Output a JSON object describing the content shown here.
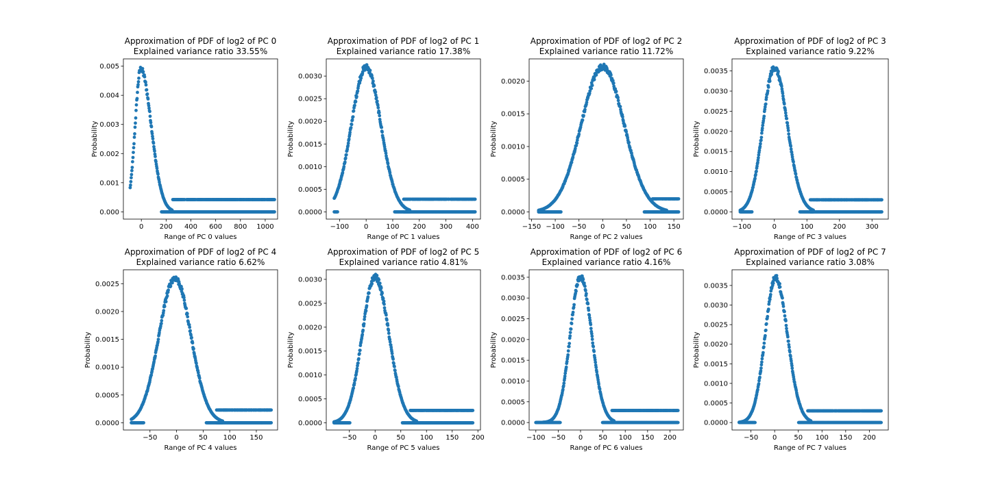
{
  "figure": {
    "marker_color": "#1f77b4"
  },
  "chart_data": [
    {
      "type": "scatter",
      "title": "Approximation of PDF of log2 of PC 0",
      "subtitle": "Explained variance ratio 33.55%",
      "xlabel": "Range of PC 0 values",
      "ylabel": "Probability",
      "xlim": [
        -145,
        1100
      ],
      "ylim": [
        -0.00025,
        0.00525
      ],
      "xticks": [
        0,
        200,
        400,
        600,
        800,
        1000
      ],
      "yticks": [
        0.0,
        0.001,
        0.002,
        0.003,
        0.004,
        0.005
      ],
      "xtick_labels": [
        "0",
        "200",
        "400",
        "600",
        "800",
        "1000"
      ],
      "ytick_labels": [
        "0.000",
        "0.001",
        "0.002",
        "0.003",
        "0.004",
        "0.005"
      ],
      "grid": false,
      "peak": {
        "x": -5,
        "y": 0.0049
      },
      "left_std": 45,
      "right_std": 85,
      "x_range": [
        -90,
        1075
      ],
      "tail_levels": [
        0.00042,
        0.0
      ],
      "tail_start": 250
    },
    {
      "type": "scatter",
      "title": "Approximation of PDF of log2 of PC 1",
      "subtitle": "Explained variance ratio 17.38%",
      "xlabel": "Range of PC 1 values",
      "ylabel": "Probability",
      "xlim": [
        -150,
        430
      ],
      "ylim": [
        -0.00016,
        0.00338
      ],
      "xticks": [
        -100,
        0,
        100,
        200,
        300,
        400
      ],
      "yticks": [
        0.0,
        0.0005,
        0.001,
        0.0015,
        0.002,
        0.0025,
        0.003
      ],
      "xtick_labels": [
        "−100",
        "0",
        "100",
        "200",
        "300",
        "400"
      ],
      "ytick_labels": [
        "0.0000",
        "0.0005",
        "0.0010",
        "0.0015",
        "0.0020",
        "0.0025",
        "0.0030"
      ],
      "grid": false,
      "peak": {
        "x": 0,
        "y": 0.0032
      },
      "left_std": 55,
      "right_std": 55,
      "x_range": [
        -120,
        410
      ],
      "tail_levels": [
        0.00028,
        0.0
      ],
      "tail_start": 140
    },
    {
      "type": "scatter",
      "title": "Approximation of PDF of log2 of PC 2",
      "subtitle": "Explained variance ratio 11.72%",
      "xlabel": "Range of PC 2 values",
      "ylabel": "Probability",
      "xlim": [
        -155,
        170
      ],
      "ylim": [
        -0.00011,
        0.00234
      ],
      "xticks": [
        -150,
        -100,
        -50,
        0,
        50,
        100,
        150
      ],
      "yticks": [
        0.0,
        0.0005,
        0.001,
        0.0015,
        0.002
      ],
      "xtick_labels": [
        "−150",
        "−100",
        "−50",
        "0",
        "50",
        "100",
        "150"
      ],
      "ytick_labels": [
        "0.0000",
        "0.0005",
        "0.0010",
        "0.0015",
        "0.0020"
      ],
      "grid": false,
      "peak": {
        "x": 0,
        "y": 0.00222
      },
      "left_std": 45,
      "right_std": 45,
      "x_range": [
        -135,
        160
      ],
      "tail_levels": [
        0.0002,
        0.0
      ],
      "tail_start": 105
    },
    {
      "type": "scatter",
      "title": "Approximation of PDF of log2 of PC 3",
      "subtitle": "Explained variance ratio 9.22%",
      "xlabel": "Range of PC 3 values",
      "ylabel": "Probability",
      "xlim": [
        -130,
        350
      ],
      "ylim": [
        -0.00018,
        0.0038
      ],
      "xticks": [
        -100,
        0,
        100,
        200,
        300
      ],
      "yticks": [
        0.0,
        0.0005,
        0.001,
        0.0015,
        0.002,
        0.0025,
        0.003,
        0.0035
      ],
      "xtick_labels": [
        "−100",
        "0",
        "100",
        "200",
        "300"
      ],
      "ytick_labels": [
        "0.0000",
        "0.0005",
        "0.0010",
        "0.0015",
        "0.0020",
        "0.0025",
        "0.0030",
        "0.0035"
      ],
      "grid": false,
      "peak": {
        "x": 0,
        "y": 0.00358
      },
      "left_std": 35,
      "right_std": 40,
      "x_range": [
        -105,
        330
      ],
      "tail_levels": [
        0.0003,
        0.0
      ],
      "tail_start": 110
    },
    {
      "type": "scatter",
      "title": "Approximation of PDF of log2 of PC 4",
      "subtitle": "Explained variance ratio 6.62%",
      "xlabel": "Range of PC 4 values",
      "ylabel": "Probability",
      "xlim": [
        -100,
        190
      ],
      "ylim": [
        -0.00013,
        0.00275
      ],
      "xticks": [
        -50,
        0,
        50,
        100,
        150
      ],
      "yticks": [
        0.0,
        0.0005,
        0.001,
        0.0015,
        0.002,
        0.0025
      ],
      "xtick_labels": [
        "−50",
        "0",
        "50",
        "100",
        "150"
      ],
      "ytick_labels": [
        "0.0000",
        "0.0005",
        "0.0010",
        "0.0015",
        "0.0020",
        "0.0025"
      ],
      "grid": false,
      "peak": {
        "x": -3,
        "y": 0.0026
      },
      "left_std": 30,
      "right_std": 30,
      "x_range": [
        -85,
        178
      ],
      "tail_levels": [
        0.00023,
        0.0
      ],
      "tail_start": 75
    },
    {
      "type": "scatter",
      "title": "Approximation of PDF of log2 of PC 5",
      "subtitle": "Explained variance ratio 4.81%",
      "xlabel": "Range of PC 5 values",
      "ylabel": "Probability",
      "xlim": [
        -95,
        205
      ],
      "ylim": [
        -0.00015,
        0.0032
      ],
      "xticks": [
        -50,
        0,
        50,
        100,
        150,
        200
      ],
      "yticks": [
        0.0,
        0.0005,
        0.001,
        0.0015,
        0.002,
        0.0025,
        0.003
      ],
      "xtick_labels": [
        "−50",
        "0",
        "50",
        "100",
        "150",
        "200"
      ],
      "ytick_labels": [
        "0.0000",
        "0.0005",
        "0.0010",
        "0.0015",
        "0.0020",
        "0.0025",
        "0.0030"
      ],
      "grid": false,
      "peak": {
        "x": 0,
        "y": 0.00305
      },
      "left_std": 25,
      "right_std": 27,
      "x_range": [
        -80,
        190
      ],
      "tail_levels": [
        0.00026,
        0.0
      ],
      "tail_start": 68
    },
    {
      "type": "scatter",
      "title": "Approximation of PDF of log2 of PC 6",
      "subtitle": "Explained variance ratio 4.16%",
      "xlabel": "Range of PC 6 values",
      "ylabel": "Probability",
      "xlim": [
        -115,
        230
      ],
      "ylim": [
        -0.00018,
        0.00368
      ],
      "xticks": [
        -100,
        -50,
        0,
        50,
        100,
        150,
        200
      ],
      "yticks": [
        0.0,
        0.0005,
        0.001,
        0.0015,
        0.002,
        0.0025,
        0.003,
        0.0035
      ],
      "xtick_labels": [
        "−100",
        "−50",
        "0",
        "50",
        "100",
        "150",
        "200"
      ],
      "ytick_labels": [
        "0.0000",
        "0.0005",
        "0.0010",
        "0.0015",
        "0.0020",
        "0.0025",
        "0.0030",
        "0.0035"
      ],
      "grid": false,
      "peak": {
        "x": 0,
        "y": 0.0035
      },
      "left_std": 23,
      "right_std": 25,
      "x_range": [
        -100,
        218
      ],
      "tail_levels": [
        0.00029,
        0.0
      ],
      "tail_start": 70
    },
    {
      "type": "scatter",
      "title": "Approximation of PDF of log2 of PC 7",
      "subtitle": "Explained variance ratio 3.08%",
      "xlabel": "Range of PC 7 values",
      "ylabel": "Probability",
      "xlim": [
        -90,
        240
      ],
      "ylim": [
        -0.00019,
        0.0039
      ],
      "xticks": [
        -50,
        0,
        50,
        100,
        150,
        200
      ],
      "yticks": [
        0.0,
        0.0005,
        0.001,
        0.0015,
        0.002,
        0.0025,
        0.003,
        0.0035
      ],
      "xtick_labels": [
        "−50",
        "0",
        "50",
        "100",
        "150",
        "200"
      ],
      "ytick_labels": [
        "0.0000",
        "0.0005",
        "0.0010",
        "0.0015",
        "0.0020",
        "0.0025",
        "0.0030",
        "0.0035"
      ],
      "grid": false,
      "peak": {
        "x": 2,
        "y": 0.0037
      },
      "left_std": 22,
      "right_std": 25,
      "x_range": [
        -75,
        225
      ],
      "tail_levels": [
        0.0003,
        0.0
      ],
      "tail_start": 70
    }
  ]
}
